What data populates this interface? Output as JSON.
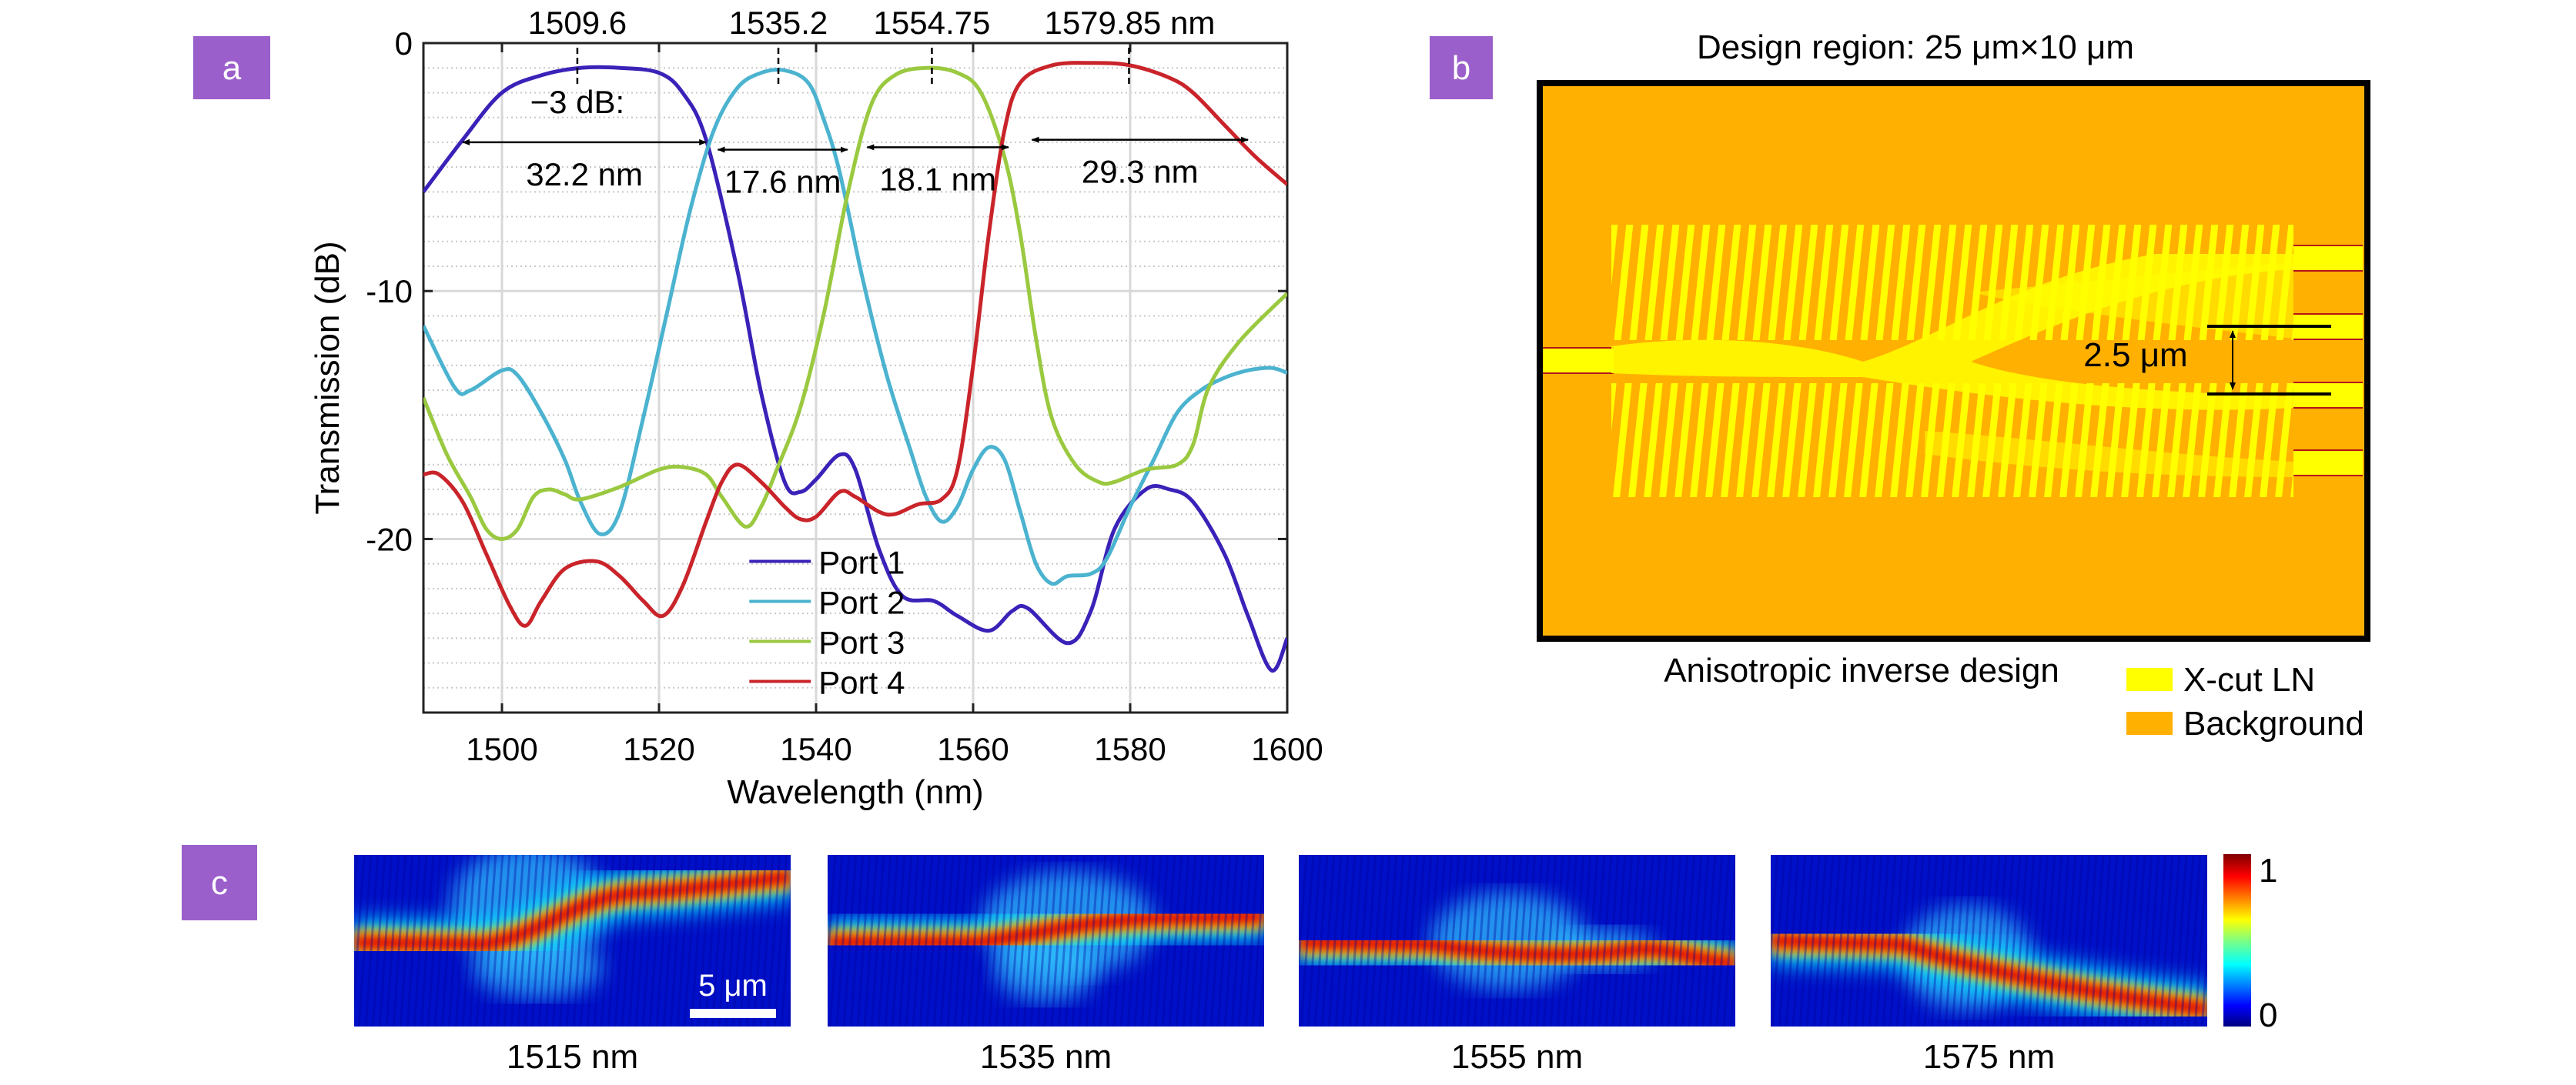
{
  "panels": {
    "a": "a",
    "b": "b",
    "c": "c"
  },
  "colors": {
    "label_bg": "#9b5fcb",
    "xcut_ln": "#ffff00",
    "background": "#ffb000",
    "port1": "#3a22b8",
    "port2": "#4bb3cf",
    "port3": "#9ac940",
    "port4": "#c9242a"
  },
  "chart_data": {
    "type": "line",
    "title": "",
    "xlabel": "Wavelength (nm)",
    "ylabel": "Transmission (dB)",
    "xlim": [
      1490,
      1600
    ],
    "ylim": [
      -27,
      0
    ],
    "xticks": [
      1500,
      1520,
      1540,
      1560,
      1580,
      1600
    ],
    "yticks": [
      0,
      -10,
      -20
    ],
    "grid": true,
    "legend_placement": "bottom-center",
    "series": [
      {
        "name": "Port 1",
        "color": "#3a22b8",
        "points": [
          [
            1490,
            -6.0
          ],
          [
            1495,
            -3.9
          ],
          [
            1500,
            -2.0
          ],
          [
            1505,
            -1.3
          ],
          [
            1510,
            -1.0
          ],
          [
            1515,
            -1.0
          ],
          [
            1520,
            -1.2
          ],
          [
            1523,
            -2.0
          ],
          [
            1526,
            -3.9
          ],
          [
            1530,
            -9.2
          ],
          [
            1533,
            -14.1
          ],
          [
            1536,
            -17.7
          ],
          [
            1538,
            -18.1
          ],
          [
            1540,
            -17.6
          ],
          [
            1543,
            -16.6
          ],
          [
            1545,
            -17.2
          ],
          [
            1548,
            -20.4
          ],
          [
            1551,
            -22.3
          ],
          [
            1555,
            -22.5
          ],
          [
            1558,
            -23.1
          ],
          [
            1562,
            -23.7
          ],
          [
            1565,
            -22.9
          ],
          [
            1567,
            -22.8
          ],
          [
            1572,
            -24.2
          ],
          [
            1575,
            -22.9
          ],
          [
            1578,
            -19.6
          ],
          [
            1582,
            -18.0
          ],
          [
            1585,
            -18.0
          ],
          [
            1588,
            -18.5
          ],
          [
            1592,
            -20.6
          ],
          [
            1595,
            -23.1
          ],
          [
            1598,
            -25.3
          ],
          [
            1600,
            -24.0
          ]
        ]
      },
      {
        "name": "Port 2",
        "color": "#4bb3cf",
        "points": [
          [
            1490,
            -11.4
          ],
          [
            1494,
            -13.9
          ],
          [
            1496,
            -14.0
          ],
          [
            1500,
            -13.2
          ],
          [
            1502,
            -13.4
          ],
          [
            1505,
            -14.9
          ],
          [
            1508,
            -16.8
          ],
          [
            1510,
            -18.5
          ],
          [
            1512.5,
            -19.8
          ],
          [
            1515,
            -18.9
          ],
          [
            1518,
            -15.1
          ],
          [
            1521,
            -10.9
          ],
          [
            1524,
            -6.7
          ],
          [
            1527,
            -3.5
          ],
          [
            1530,
            -1.8
          ],
          [
            1533,
            -1.2
          ],
          [
            1536,
            -1.1
          ],
          [
            1539,
            -1.6
          ],
          [
            1541,
            -3.1
          ],
          [
            1543,
            -5.2
          ],
          [
            1546,
            -9.6
          ],
          [
            1549,
            -13.4
          ],
          [
            1552,
            -16.4
          ],
          [
            1554,
            -18.3
          ],
          [
            1556,
            -19.3
          ],
          [
            1558,
            -18.7
          ],
          [
            1560,
            -17.2
          ],
          [
            1562,
            -16.3
          ],
          [
            1564,
            -16.8
          ],
          [
            1566,
            -18.9
          ],
          [
            1568,
            -21.0
          ],
          [
            1570,
            -21.8
          ],
          [
            1572,
            -21.5
          ],
          [
            1575,
            -21.4
          ],
          [
            1577,
            -20.8
          ],
          [
            1580,
            -18.7
          ],
          [
            1583,
            -16.8
          ],
          [
            1586,
            -14.9
          ],
          [
            1589,
            -14.0
          ],
          [
            1592,
            -13.5
          ],
          [
            1595,
            -13.2
          ],
          [
            1598,
            -13.1
          ],
          [
            1600,
            -13.3
          ]
        ]
      },
      {
        "name": "Port 3",
        "color": "#9ac940",
        "points": [
          [
            1490,
            -14.3
          ],
          [
            1493,
            -16.6
          ],
          [
            1496,
            -18.3
          ],
          [
            1498,
            -19.6
          ],
          [
            1500,
            -20.0
          ],
          [
            1502,
            -19.6
          ],
          [
            1504,
            -18.3
          ],
          [
            1506,
            -18.0
          ],
          [
            1508,
            -18.2
          ],
          [
            1510,
            -18.4
          ],
          [
            1515,
            -17.9
          ],
          [
            1520,
            -17.2
          ],
          [
            1523,
            -17.1
          ],
          [
            1526,
            -17.4
          ],
          [
            1528,
            -18.3
          ],
          [
            1531,
            -19.5
          ],
          [
            1533,
            -18.7
          ],
          [
            1535,
            -17.2
          ],
          [
            1538,
            -14.7
          ],
          [
            1541,
            -10.9
          ],
          [
            1544,
            -6.1
          ],
          [
            1547,
            -2.5
          ],
          [
            1550,
            -1.3
          ],
          [
            1554,
            -1.0
          ],
          [
            1558,
            -1.2
          ],
          [
            1561,
            -2.0
          ],
          [
            1564,
            -4.6
          ],
          [
            1566,
            -7.7
          ],
          [
            1568,
            -11.9
          ],
          [
            1570,
            -15.1
          ],
          [
            1573,
            -17.0
          ],
          [
            1576,
            -17.7
          ],
          [
            1578,
            -17.7
          ],
          [
            1582,
            -17.2
          ],
          [
            1586,
            -17.0
          ],
          [
            1588,
            -16.2
          ],
          [
            1590,
            -13.9
          ],
          [
            1594,
            -12.0
          ],
          [
            1600,
            -10.1
          ]
        ]
      },
      {
        "name": "Port 4",
        "color": "#c9242a",
        "points": [
          [
            1490,
            -17.4
          ],
          [
            1492,
            -17.4
          ],
          [
            1495,
            -18.5
          ],
          [
            1498,
            -20.6
          ],
          [
            1501,
            -22.7
          ],
          [
            1503,
            -23.5
          ],
          [
            1505,
            -22.5
          ],
          [
            1508,
            -21.2
          ],
          [
            1512,
            -20.9
          ],
          [
            1515,
            -21.5
          ],
          [
            1518,
            -22.5
          ],
          [
            1520.5,
            -23.1
          ],
          [
            1523,
            -21.9
          ],
          [
            1526,
            -19.3
          ],
          [
            1528,
            -17.7
          ],
          [
            1530,
            -17.0
          ],
          [
            1533,
            -17.7
          ],
          [
            1536,
            -18.7
          ],
          [
            1538,
            -19.2
          ],
          [
            1540,
            -19.1
          ],
          [
            1543,
            -18.1
          ],
          [
            1545,
            -18.3
          ],
          [
            1548,
            -18.9
          ],
          [
            1550,
            -19.0
          ],
          [
            1553,
            -18.6
          ],
          [
            1556,
            -18.4
          ],
          [
            1558,
            -17.2
          ],
          [
            1560,
            -13.0
          ],
          [
            1562,
            -7.7
          ],
          [
            1564,
            -3.5
          ],
          [
            1566,
            -1.6
          ],
          [
            1570,
            -0.9
          ],
          [
            1575,
            -0.8
          ],
          [
            1580,
            -0.9
          ],
          [
            1585,
            -1.4
          ],
          [
            1588,
            -2.0
          ],
          [
            1592,
            -3.3
          ],
          [
            1596,
            -4.6
          ],
          [
            1600,
            -5.7
          ]
        ]
      }
    ],
    "peaks": [
      {
        "wavelength": 1509.6,
        "label": "1509.6"
      },
      {
        "wavelength": 1535.2,
        "label": "1535.2"
      },
      {
        "wavelength": 1554.75,
        "label": "1554.75"
      },
      {
        "wavelength": 1579.85,
        "label": "1579.85 nm"
      }
    ],
    "threedb_label": "−3 dB:",
    "bandwidths": [
      {
        "from": 1495,
        "to": 1526,
        "level": -4.0,
        "label": "32.2 nm"
      },
      {
        "from": 1527.5,
        "to": 1544,
        "level": -4.3,
        "label": "17.6 nm"
      },
      {
        "from": 1546.5,
        "to": 1564.5,
        "level": -4.2,
        "label": "18.1 nm"
      },
      {
        "from": 1567.5,
        "to": 1595,
        "level": -3.9,
        "label": "29.3 nm"
      }
    ]
  },
  "design": {
    "title": "Design region: 25 μm×10 μm",
    "spacing_label": "2.5 μm",
    "caption": "Anisotropic inverse design",
    "legend": [
      {
        "label": "X-cut LN",
        "color": "#ffff00"
      },
      {
        "label": "Background",
        "color": "#ffb000"
      }
    ]
  },
  "fields": {
    "scale_bar": "5 μm",
    "colorbar": {
      "max": "1",
      "min": "0"
    },
    "panels": [
      {
        "wavelength": "1515 nm"
      },
      {
        "wavelength": "1535 nm"
      },
      {
        "wavelength": "1555 nm"
      },
      {
        "wavelength": "1575 nm"
      }
    ]
  }
}
